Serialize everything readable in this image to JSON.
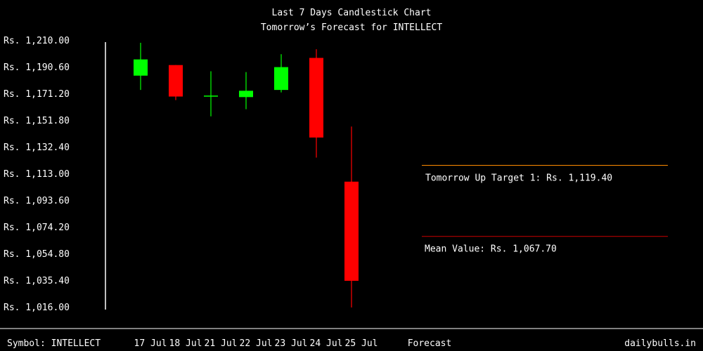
{
  "chart_data": {
    "type": "candlestick",
    "title": "Last 7 Days Candlestick Chart",
    "subtitle": "Tomorrow’s Forecast for INTELLECT",
    "y_ticks": [
      "Rs. 1,210.00",
      "Rs. 1,190.60",
      "Rs. 1,171.20",
      "Rs. 1,151.80",
      "Rs. 1,132.40",
      "Rs. 1,113.00",
      "Rs. 1,093.60",
      "Rs. 1,074.20",
      "Rs. 1,054.80",
      "Rs. 1,035.40",
      "Rs. 1,016.00"
    ],
    "y_tick_values": [
      1210.0,
      1190.6,
      1171.2,
      1151.8,
      1132.4,
      1113.0,
      1093.6,
      1074.2,
      1054.8,
      1035.4,
      1016.0
    ],
    "ylim": [
      1016.0,
      1210.0
    ],
    "categories": [
      "17 Jul",
      "18 Jul",
      "21 Jul",
      "22 Jul",
      "23 Jul",
      "24 Jul",
      "25 Jul"
    ],
    "candles": [
      {
        "date": "17 Jul",
        "open": 1184.6,
        "high": 1208.5,
        "low": 1174.2,
        "close": 1196.4
      },
      {
        "date": "18 Jul",
        "open": 1192.3,
        "high": 1192.3,
        "low": 1166.8,
        "close": 1169.4
      },
      {
        "date": "21 Jul",
        "open": 1169.6,
        "high": 1187.8,
        "low": 1155.0,
        "close": 1170.1
      },
      {
        "date": "22 Jul",
        "open": 1169.0,
        "high": 1187.2,
        "low": 1160.2,
        "close": 1173.6
      },
      {
        "date": "23 Jul",
        "open": 1174.2,
        "high": 1200.2,
        "low": 1172.4,
        "close": 1190.8
      },
      {
        "date": "24 Jul",
        "open": 1197.5,
        "high": 1203.8,
        "low": 1125.0,
        "close": 1139.6
      },
      {
        "date": "25 Jul",
        "open": 1107.5,
        "high": 1147.6,
        "low": 1016.0,
        "close": 1035.4
      }
    ],
    "up_color": "#00ff00",
    "down_color": "#ff0000",
    "forecast_label": "Forecast",
    "forecast": {
      "up_target_label": "Tomorrow Up Target 1: Rs. 1,119.40",
      "up_target_value": 1119.4,
      "up_target_color": "#ff8c00",
      "mean_label": "Mean Value: Rs. 1,067.70",
      "mean_value": 1067.7,
      "mean_color": "#cc0000"
    }
  },
  "footer": {
    "symbol": "Symbol: INTELLECT",
    "brand": "dailybulls.in"
  }
}
